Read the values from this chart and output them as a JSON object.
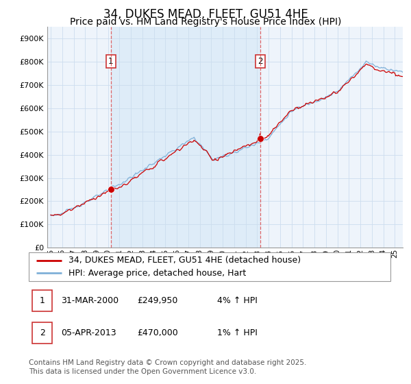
{
  "title": "34, DUKES MEAD, FLEET, GU51 4HE",
  "subtitle": "Price paid vs. HM Land Registry's House Price Index (HPI)",
  "ylim": [
    0,
    950000
  ],
  "yticks": [
    0,
    100000,
    200000,
    300000,
    400000,
    500000,
    600000,
    700000,
    800000,
    900000
  ],
  "ytick_labels": [
    "£0",
    "£100K",
    "£200K",
    "£300K",
    "£400K",
    "£500K",
    "£600K",
    "£700K",
    "£800K",
    "£900K"
  ],
  "grid_color": "#ccddee",
  "plot_bg_color": "#eef4fb",
  "shaded_region_color": "#ddeeff",
  "red_line_color": "#cc0000",
  "blue_line_color": "#7fb0d8",
  "marker1_x": 2000.25,
  "marker1_y": 249950,
  "marker2_x": 2013.27,
  "marker2_y": 470000,
  "legend_label_red": "34, DUKES MEAD, FLEET, GU51 4HE (detached house)",
  "legend_label_blue": "HPI: Average price, detached house, Hart",
  "table_row1": [
    "1",
    "31-MAR-2000",
    "£249,950",
    "4% ↑ HPI"
  ],
  "table_row2": [
    "2",
    "05-APR-2013",
    "£470,000",
    "1% ↑ HPI"
  ],
  "footer_text": "Contains HM Land Registry data © Crown copyright and database right 2025.\nThis data is licensed under the Open Government Licence v3.0.",
  "title_fontsize": 12,
  "subtitle_fontsize": 10,
  "tick_fontsize": 8,
  "legend_fontsize": 9,
  "table_fontsize": 9,
  "footer_fontsize": 7.5,
  "xlim_start": 1994.7,
  "xlim_end": 2025.7
}
